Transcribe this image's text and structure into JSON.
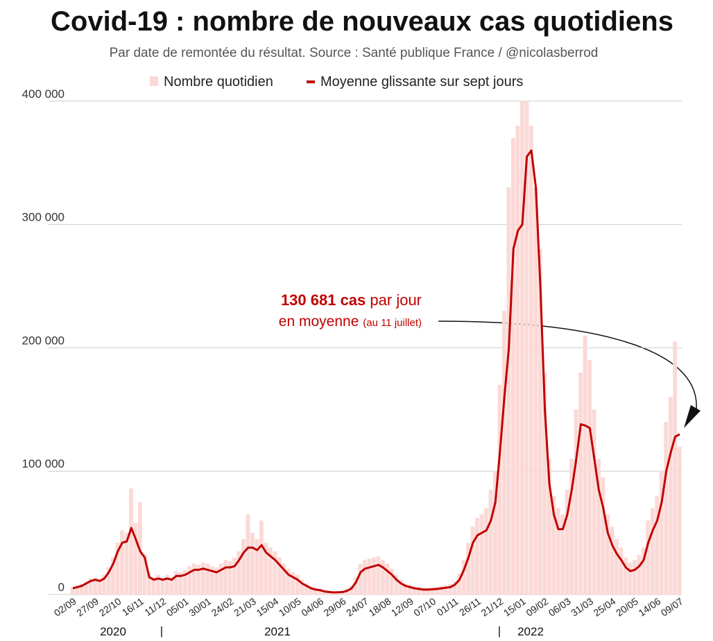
{
  "chart_data": {
    "type": "bar_line",
    "title": "Covid-19 : nombre de nouveaux cas quotidiens",
    "subtitle": "Par date de remontée du résultat. Source : Santé publique France / @nicolasberrod",
    "annotation": {
      "bold": "130 681 cas",
      "rest": "par jour",
      "line2": "en moyenne",
      "note": "(au 11 juillet)"
    },
    "year_labels": [
      "2020",
      "2021",
      "2022"
    ],
    "year_separator": "|",
    "categories": [
      "02/09",
      null,
      null,
      null,
      null,
      "27/09",
      null,
      null,
      null,
      null,
      "22/10",
      null,
      null,
      null,
      null,
      "16/11",
      null,
      null,
      null,
      null,
      "11/12",
      null,
      null,
      null,
      null,
      "05/01",
      null,
      null,
      null,
      null,
      "30/01",
      null,
      null,
      null,
      null,
      "24/02",
      null,
      null,
      null,
      null,
      "21/03",
      null,
      null,
      null,
      null,
      "15/04",
      null,
      null,
      null,
      null,
      "10/05",
      null,
      null,
      null,
      null,
      "04/06",
      null,
      null,
      null,
      null,
      "29/06",
      null,
      null,
      null,
      null,
      "24/07",
      null,
      null,
      null,
      null,
      "18/08",
      null,
      null,
      null,
      null,
      "12/09",
      null,
      null,
      null,
      null,
      "07/10",
      null,
      null,
      null,
      null,
      "01/11",
      null,
      null,
      null,
      null,
      "26/11",
      null,
      null,
      null,
      null,
      "21/12",
      null,
      null,
      null,
      null,
      "15/01",
      null,
      null,
      null,
      null,
      "09/02",
      null,
      null,
      null,
      null,
      "06/03",
      null,
      null,
      null,
      null,
      "31/03",
      null,
      null,
      null,
      null,
      "25/04",
      null,
      null,
      null,
      null,
      "20/05",
      null,
      null,
      null,
      null,
      "14/06",
      null,
      null,
      null,
      null,
      "09/07"
    ],
    "series": [
      {
        "name": "Nombre quotidien",
        "kind": "bar",
        "color": "#fbd9d6",
        "values": [
          6000,
          7500,
          8500,
          10500,
          13000,
          14000,
          12000,
          16000,
          22000,
          30000,
          42000,
          52000,
          50000,
          86000,
          58000,
          75000,
          33000,
          18000,
          14000,
          16000,
          14000,
          16000,
          14000,
          19000,
          18000,
          20000,
          23000,
          25000,
          24000,
          26000,
          25000,
          23000,
          22000,
          25000,
          28000,
          27000,
          30000,
          35000,
          45000,
          65000,
          50000,
          45000,
          60000,
          42000,
          38000,
          35000,
          30000,
          25000,
          21000,
          18000,
          16000,
          12000,
          9000,
          7000,
          5500,
          5000,
          3500,
          3000,
          2500,
          2600,
          3000,
          4500,
          7000,
          14000,
          25000,
          28000,
          29000,
          30000,
          31000,
          28000,
          25000,
          21000,
          16000,
          12000,
          9000,
          8000,
          7000,
          6000,
          5500,
          5500,
          6000,
          6200,
          7000,
          7500,
          8500,
          11000,
          17000,
          28000,
          42000,
          55000,
          62000,
          65000,
          70000,
          85000,
          100000,
          170000,
          230000,
          330000,
          370000,
          380000,
          400000,
          400000,
          380000,
          330000,
          280000,
          180000,
          110000,
          80000,
          70000,
          65000,
          85000,
          110000,
          150000,
          180000,
          210000,
          190000,
          150000,
          110000,
          95000,
          65000,
          55000,
          45000,
          38000,
          30000,
          26000,
          28000,
          32000,
          38000,
          60000,
          70000,
          80000,
          100000,
          140000,
          160000,
          205000,
          120000
        ]
      },
      {
        "name": "Moyenne glissante sur sept jours",
        "kind": "line",
        "color": "#c00000",
        "values": [
          5000,
          6000,
          7000,
          9000,
          11000,
          12000,
          11000,
          13000,
          18000,
          25000,
          35000,
          42000,
          43000,
          54000,
          45000,
          35000,
          30000,
          14000,
          12000,
          13000,
          12000,
          13000,
          12000,
          15000,
          15000,
          16000,
          18000,
          20000,
          20000,
          21000,
          20000,
          19000,
          18000,
          20000,
          22000,
          22000,
          23000,
          28000,
          34000,
          38000,
          38000,
          36000,
          40000,
          34000,
          31000,
          28000,
          24000,
          20000,
          16000,
          14000,
          12000,
          9000,
          7000,
          5000,
          4000,
          3500,
          2500,
          2000,
          1700,
          1800,
          2000,
          3000,
          5000,
          10000,
          18000,
          21000,
          22000,
          23000,
          24000,
          22000,
          19000,
          16000,
          12000,
          9000,
          7000,
          6000,
          5000,
          4500,
          4000,
          4000,
          4200,
          4500,
          5000,
          5500,
          6000,
          8000,
          12000,
          20000,
          30000,
          42000,
          48000,
          50000,
          52000,
          60000,
          75000,
          115000,
          160000,
          200000,
          280000,
          295000,
          300000,
          355000,
          360000,
          330000,
          250000,
          150000,
          90000,
          65000,
          53000,
          53000,
          65000,
          85000,
          110000,
          138000,
          137000,
          135000,
          110000,
          85000,
          70000,
          50000,
          40000,
          33000,
          28000,
          22000,
          19000,
          20000,
          23000,
          28000,
          42000,
          52000,
          60000,
          75000,
          100000,
          115000,
          128000,
          130000
        ]
      }
    ],
    "ylim": [
      0,
      410000
    ],
    "yticks": [
      0,
      {
        "value": 100000,
        "label": "100 000"
      },
      {
        "value": 200000,
        "label": "200 000"
      },
      {
        "value": 300000,
        "label": "300 000"
      },
      {
        "value": 400000,
        "label": "400 000"
      }
    ],
    "grid": true
  }
}
